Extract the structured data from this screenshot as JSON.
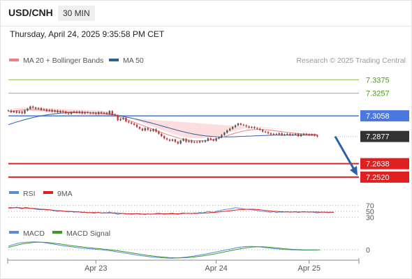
{
  "header": {
    "pair": "USD/CNH",
    "timeframe": "30 MIN"
  },
  "timestamp": "Thursday, April 24, 2025 9:35:58 PM CET",
  "credit": "Research © 2025 Trading Central",
  "colors": {
    "ma20": "#f08080",
    "ma50": "#2d5f9a",
    "bands_fill": "#fbd3d3",
    "resistance": "#8dbf5a",
    "resistance_text": "#4f9a1c",
    "pivot": "#4a78e0",
    "support": "#e02020",
    "arrow": "#2f62a3",
    "current_tag": "#333333",
    "candle_up": "#555555",
    "candle_down": "#b83a3a",
    "rsi": "#5b8bd8",
    "rsi_ma": "#e02020",
    "macd": "#5b8bd8",
    "macd_signal": "#3a9a2a"
  },
  "chart_data": [
    {
      "type": "line",
      "panel": "price",
      "legend": [
        {
          "name": "MA 20 + Bollinger Bands",
          "color": "#f08080"
        },
        {
          "name": "MA 50",
          "color": "#2d5f9a"
        }
      ],
      "levels": [
        {
          "value": 7.3375,
          "label": "7.3375",
          "kind": "resistance"
        },
        {
          "value": 7.3257,
          "label": "7.3257",
          "kind": "resistance"
        },
        {
          "value": 7.3058,
          "label": "7.3058",
          "kind": "pivot"
        },
        {
          "value": 7.2877,
          "label": "7.2877",
          "kind": "current"
        },
        {
          "value": 7.2638,
          "label": "7.2638",
          "kind": "support"
        },
        {
          "value": 7.252,
          "label": "7.2520",
          "kind": "support"
        }
      ],
      "ylim": [
        7.2495,
        7.3475
      ],
      "x_ticks": [
        "Apr 23",
        "Apr 24",
        "Apr 25"
      ],
      "x_tick_index": [
        32,
        76,
        110
      ],
      "n_bars": 120,
      "closes": [
        7.3105,
        7.309,
        7.31,
        7.3085,
        7.3095,
        7.308,
        7.3105,
        7.312,
        7.314,
        7.313,
        7.312,
        7.3125,
        7.311,
        7.3115,
        7.31,
        7.311,
        7.3095,
        7.3105,
        7.309,
        7.31,
        7.3095,
        7.308,
        7.3075,
        7.309,
        7.3095,
        7.3085,
        7.3095,
        7.308,
        7.309,
        7.3085,
        7.308,
        7.3085,
        7.3075,
        7.309,
        7.308,
        7.3085,
        7.3075,
        7.31,
        7.307,
        7.306,
        7.302,
        7.303,
        7.304,
        7.301,
        7.3,
        7.299,
        7.298,
        7.296,
        7.2945,
        7.293,
        7.295,
        7.2935,
        7.2925,
        7.294,
        7.292,
        7.29,
        7.288,
        7.286,
        7.285,
        7.284,
        7.285,
        7.283,
        7.2815,
        7.284,
        7.2855,
        7.283,
        7.284,
        7.2825,
        7.283,
        7.2825,
        7.2835,
        7.283,
        7.284,
        7.286,
        7.285,
        7.284,
        7.286,
        7.287,
        7.289,
        7.291,
        7.293,
        7.2945,
        7.296,
        7.2975,
        7.299,
        7.298,
        7.2975,
        7.2965,
        7.2955,
        7.296,
        7.295,
        7.2945,
        7.2935,
        7.292,
        7.2915,
        7.2905,
        7.2895,
        7.29,
        7.2895,
        7.2905,
        7.289,
        7.2895,
        7.29,
        7.289,
        7.2895,
        7.29,
        7.288,
        7.2895,
        7.29,
        7.2895,
        7.289,
        7.2895,
        7.2885,
        7.2877
      ],
      "ma20": [
        7.3095,
        7.3097,
        7.31,
        7.3103,
        7.3106,
        7.3108,
        7.311,
        7.3112,
        7.3113,
        7.3113,
        7.3112,
        7.3111,
        7.311,
        7.3108,
        7.3106,
        7.3104,
        7.3102,
        7.31,
        7.3098,
        7.3097,
        7.3096,
        7.3095,
        7.3094,
        7.3093,
        7.3092,
        7.3091,
        7.309,
        7.3089,
        7.3088,
        7.3087,
        7.3086,
        7.3085,
        7.3084,
        7.3082,
        7.308,
        7.3077,
        7.3073,
        7.3069,
        7.3064,
        7.3058,
        7.3051,
        7.3044,
        7.3036,
        7.3028,
        7.302,
        7.3011,
        7.3002,
        7.2993,
        7.2984,
        7.2975,
        7.2966,
        7.2957,
        7.2948,
        7.2939,
        7.293,
        7.2921,
        7.2912,
        7.2903,
        7.2895,
        7.2887,
        7.2879,
        7.2872,
        7.2865,
        7.2858,
        7.2853,
        7.2848,
        7.2845,
        7.2842,
        7.284,
        7.2839,
        7.2839,
        7.284,
        7.2841,
        7.2843,
        7.2846,
        7.285,
        7.2855,
        7.2861,
        7.2868,
        7.2876,
        7.2884,
        7.2892,
        7.2899,
        7.2906,
        7.2913,
        7.2919,
        7.2924,
        7.2929,
        7.2933,
        7.2936,
        7.2938,
        7.2939,
        7.2939,
        7.2938,
        7.2936,
        7.2934,
        7.2931,
        7.2928,
        7.2925,
        7.2922,
        7.2919,
        7.2916,
        7.2913,
        7.291,
        7.2907,
        7.2905,
        7.2903,
        7.2901,
        7.2899,
        7.2898,
        7.2897,
        7.2896,
        7.2895,
        7.2894
      ],
      "ma50": [
        7.298,
        7.2988,
        7.2996,
        7.3004,
        7.3011,
        7.3018,
        7.3025,
        7.3031,
        7.3037,
        7.3043,
        7.3048,
        7.3053,
        7.3058,
        7.3062,
        7.3066,
        7.307,
        7.3073,
        7.3076,
        7.3079,
        7.3081,
        7.3083,
        7.3085,
        7.3086,
        7.3087,
        7.3088,
        7.3088,
        7.3088,
        7.3088,
        7.3088,
        7.3087,
        7.3086,
        7.3085,
        7.3084,
        7.3082,
        7.308,
        7.3078,
        7.3075,
        7.3072,
        7.3069,
        7.3065,
        7.3061,
        7.3057,
        7.3053,
        7.3048,
        7.3043,
        7.3038,
        7.3033,
        7.3027,
        7.3021,
        7.3015,
        7.3009,
        7.3003,
        7.2997,
        7.299,
        7.2984,
        7.2977,
        7.297,
        7.2963,
        7.2957,
        7.295,
        7.2943,
        7.2937,
        7.293,
        7.2924,
        7.2918,
        7.2912,
        7.2907,
        7.2902,
        7.2897,
        7.2893,
        7.2889,
        7.2886,
        7.2883,
        7.288,
        7.2878,
        7.2876,
        7.2875,
        7.2874,
        7.2873,
        7.2873,
        7.2873,
        7.2873,
        7.2874,
        7.2875,
        7.2876,
        7.2877,
        7.2878,
        7.2879,
        7.288,
        7.2881,
        7.2882,
        7.2883,
        7.2884,
        7.2885,
        7.2886,
        7.2887,
        7.2887,
        7.2888,
        7.2888,
        7.2889,
        7.2889,
        7.2889,
        7.2889,
        7.2889,
        7.2889,
        7.2889,
        7.2889,
        7.2889,
        7.2889,
        7.2889,
        7.2888,
        7.2888,
        7.2888,
        7.2888
      ],
      "forecast_arrow": {
        "from": 7.2877,
        "to": 7.252
      }
    },
    {
      "type": "line",
      "panel": "rsi",
      "legend": [
        {
          "name": "RSI",
          "color": "#5b8bd8"
        },
        {
          "name": "9MA",
          "color": "#e02020"
        }
      ],
      "y_ticks": [
        70,
        50,
        30
      ],
      "ylim": [
        20,
        80
      ],
      "rsi": [
        62,
        63,
        61,
        64,
        60,
        58,
        63,
        62,
        60,
        59,
        57,
        56,
        55,
        56,
        54,
        55,
        53,
        52,
        50,
        52,
        51,
        49,
        48,
        50,
        47,
        49,
        48,
        46,
        47,
        45,
        46,
        44,
        45,
        47,
        44,
        46,
        45,
        48,
        44,
        43,
        40,
        42,
        43,
        41,
        42,
        40,
        41,
        43,
        40,
        41,
        39,
        42,
        40,
        41,
        43,
        44,
        42,
        40,
        41,
        43,
        44,
        42,
        40,
        43,
        45,
        43,
        44,
        42,
        45,
        44,
        46,
        45,
        47,
        50,
        48,
        47,
        50,
        52,
        54,
        56,
        57,
        58,
        60,
        62,
        61,
        60,
        58,
        57,
        56,
        55,
        54,
        53,
        51,
        50,
        49,
        48,
        47,
        49,
        46,
        48,
        47,
        48,
        49,
        47,
        48,
        49,
        46,
        48,
        49,
        48,
        47,
        48,
        46,
        45,
        47,
        48,
        47,
        46,
        47,
        46
      ],
      "rsi_ma": [
        61,
        61,
        62,
        62,
        62,
        61,
        61,
        61,
        60,
        60,
        59,
        58,
        57,
        57,
        56,
        55,
        54,
        53,
        52,
        52,
        51,
        50,
        50,
        49,
        49,
        48,
        48,
        47,
        47,
        46,
        46,
        46,
        46,
        46,
        45,
        45,
        45,
        45,
        45,
        45,
        44,
        43,
        43,
        42,
        42,
        42,
        42,
        42,
        42,
        41,
        41,
        41,
        41,
        41,
        41,
        41,
        42,
        42,
        42,
        42,
        42,
        42,
        42,
        42,
        43,
        43,
        43,
        43,
        43,
        43,
        44,
        44,
        45,
        45,
        46,
        46,
        47,
        48,
        49,
        50,
        51,
        52,
        53,
        54,
        55,
        56,
        56,
        57,
        57,
        57,
        57,
        56,
        55,
        54,
        53,
        52,
        51,
        50,
        50,
        49,
        49,
        48,
        48,
        48,
        48,
        48,
        48,
        48,
        48,
        48,
        48,
        48,
        48,
        48,
        47,
        47,
        47,
        47,
        47,
        47
      ]
    },
    {
      "type": "line",
      "panel": "macd",
      "legend": [
        {
          "name": "MACD",
          "color": "#5b8bd8"
        },
        {
          "name": "MACD Signal",
          "color": "#3a9a2a"
        }
      ],
      "y_ticks": [
        0
      ],
      "ylim": [
        -1.0,
        1.0
      ],
      "macd": [
        0.3,
        0.4,
        0.48,
        0.55,
        0.6,
        0.63,
        0.66,
        0.68,
        0.69,
        0.7,
        0.7,
        0.69,
        0.67,
        0.64,
        0.6,
        0.56,
        0.52,
        0.48,
        0.44,
        0.4,
        0.36,
        0.32,
        0.29,
        0.26,
        0.23,
        0.2,
        0.17,
        0.14,
        0.12,
        0.1,
        0.08,
        0.06,
        0.04,
        0.02,
        0.0,
        -0.03,
        -0.06,
        -0.09,
        -0.12,
        -0.16,
        -0.2,
        -0.24,
        -0.28,
        -0.32,
        -0.36,
        -0.4,
        -0.44,
        -0.48,
        -0.52,
        -0.55,
        -0.58,
        -0.61,
        -0.64,
        -0.66,
        -0.68,
        -0.7,
        -0.72,
        -0.74,
        -0.75,
        -0.76,
        -0.76,
        -0.75,
        -0.73,
        -0.71,
        -0.69,
        -0.66,
        -0.63,
        -0.6,
        -0.56,
        -0.52,
        -0.48,
        -0.44,
        -0.4,
        -0.35,
        -0.3,
        -0.25,
        -0.2,
        -0.15,
        -0.1,
        -0.05,
        0.0,
        0.05,
        0.1,
        0.15,
        0.2,
        0.24,
        0.27,
        0.29,
        0.3,
        0.3,
        0.29,
        0.27,
        0.25,
        0.22,
        0.19,
        0.16,
        0.13,
        0.1,
        0.08,
        0.06,
        0.04,
        0.02,
        0.01,
        0.0,
        -0.01,
        -0.02,
        -0.02,
        -0.03,
        -0.03,
        -0.03,
        -0.03,
        -0.03,
        -0.03,
        -0.03
      ],
      "macd_signal": [
        0.2,
        0.27,
        0.34,
        0.4,
        0.46,
        0.51,
        0.55,
        0.59,
        0.62,
        0.64,
        0.66,
        0.67,
        0.67,
        0.66,
        0.65,
        0.63,
        0.6,
        0.57,
        0.54,
        0.51,
        0.47,
        0.44,
        0.4,
        0.37,
        0.34,
        0.31,
        0.28,
        0.25,
        0.22,
        0.19,
        0.17,
        0.14,
        0.12,
        0.1,
        0.08,
        0.05,
        0.03,
        0.0,
        -0.03,
        -0.06,
        -0.09,
        -0.13,
        -0.16,
        -0.2,
        -0.24,
        -0.28,
        -0.32,
        -0.36,
        -0.4,
        -0.44,
        -0.47,
        -0.51,
        -0.54,
        -0.57,
        -0.6,
        -0.62,
        -0.65,
        -0.67,
        -0.69,
        -0.71,
        -0.72,
        -0.73,
        -0.73,
        -0.73,
        -0.72,
        -0.71,
        -0.69,
        -0.67,
        -0.65,
        -0.62,
        -0.59,
        -0.56,
        -0.52,
        -0.48,
        -0.44,
        -0.4,
        -0.35,
        -0.3,
        -0.25,
        -0.2,
        -0.15,
        -0.1,
        -0.05,
        0.0,
        0.05,
        0.09,
        0.13,
        0.17,
        0.2,
        0.23,
        0.25,
        0.26,
        0.27,
        0.26,
        0.25,
        0.23,
        0.21,
        0.19,
        0.16,
        0.14,
        0.11,
        0.09,
        0.07,
        0.05,
        0.03,
        0.02,
        0.01,
        0.0,
        -0.01,
        -0.01,
        -0.02,
        -0.02,
        -0.02,
        -0.02,
        -0.02
      ]
    }
  ]
}
